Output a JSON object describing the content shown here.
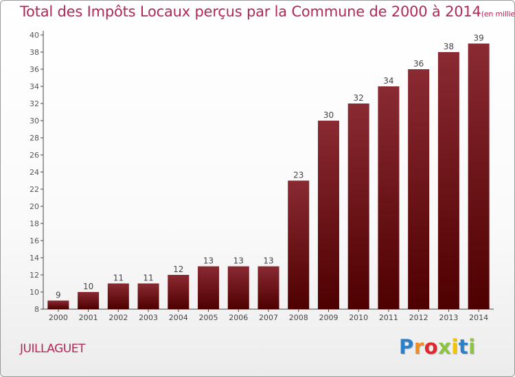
{
  "chart_data": {
    "type": "bar",
    "title": "Total des Impôts Locaux perçus par la Commune de 2000 à 2014",
    "unit_label": "(en milliers d'€)",
    "categories": [
      "2000",
      "2001",
      "2002",
      "2003",
      "2004",
      "2005",
      "2006",
      "2007",
      "2008",
      "2009",
      "2010",
      "2011",
      "2012",
      "2013",
      "2014"
    ],
    "values": [
      9,
      10,
      11,
      11,
      12,
      13,
      13,
      13,
      23,
      30,
      32,
      34,
      36,
      38,
      39
    ],
    "ylim": [
      8,
      40
    ],
    "yticks": [
      8,
      10,
      12,
      14,
      16,
      18,
      20,
      22,
      24,
      26,
      28,
      30,
      32,
      34,
      36,
      38,
      40
    ],
    "xlabel": "",
    "ylabel": "",
    "grid": false,
    "bar_color_top": "#8a2a32",
    "bar_color_bottom": "#4e0000"
  },
  "footer": {
    "commune": "JUILLAGUET",
    "logo_letters": [
      {
        "ch": "P",
        "color": "#2f7fc8"
      },
      {
        "ch": "r",
        "color": "#f28c1c"
      },
      {
        "ch": "o",
        "color": "#e3262b"
      },
      {
        "ch": "x",
        "color": "#8cc43f"
      },
      {
        "ch": "i",
        "color": "#f5c400"
      },
      {
        "ch": "t",
        "color": "#2f7fc8"
      },
      {
        "ch": "i",
        "color": "#8cc43f"
      }
    ]
  }
}
